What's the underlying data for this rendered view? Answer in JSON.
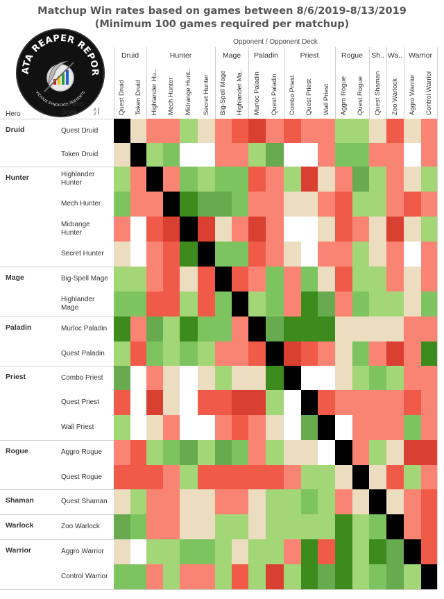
{
  "title_line1": "Matchup Win rates based on games between 8/6/2019-8/13/2019",
  "title_line2": "(Minimum 100 games required per matchup)",
  "logo": {
    "text_top": "DATA REAPER REPORT",
    "text_bottom": "VICIOUS SYNDICATE PRESENTS"
  },
  "opponent_header": "Opponent  /  Opponent Deck",
  "row_header": {
    "hero": "Hero",
    "deck": "Deck",
    "sort_icon": "sort-icon"
  },
  "colors": {
    "dark_red": "#c00000",
    "red": "#d94032",
    "red_light": "#f05a48",
    "salmon": "#fa8474",
    "beige": "#ecdcc0",
    "white": "#ffffff",
    "green_light": "#a3d677",
    "green": "#7dc35f",
    "green_mid": "#67aa4f",
    "dark_green": "#3d8b1c",
    "black": "#000000"
  },
  "chart_data": {
    "type": "heatmap",
    "title": "Matchup Win rates based on games between 8/6/2019-8/13/2019",
    "subtitle": "(Minimum 100 games required per matchup)",
    "xlabel": "Opponent  /  Opponent Deck",
    "ylabel": "Hero / Deck",
    "value_scale": "categorical win-rate color bins: dark_red (lowest) ... salmon, beige (~50%), green_light ... dark_green (highest); black = mirror match; white = no data",
    "column_groups": [
      {
        "name": "Druid",
        "count": 2
      },
      {
        "name": "Hunter",
        "count": 4
      },
      {
        "name": "Mage",
        "count": 2
      },
      {
        "name": "Paladin",
        "count": 2
      },
      {
        "name": "Priest",
        "count": 3
      },
      {
        "name": "Rogue",
        "count": 2
      },
      {
        "name": "Sh..",
        "count": 1
      },
      {
        "name": "Wa..",
        "count": 1
      },
      {
        "name": "Warrior",
        "count": 2
      }
    ],
    "columns": [
      "Quest Druid",
      "Token Druid",
      "Highlander Hu..",
      "Mech Hunter",
      "Midrange Hunt..",
      "Secret Hunter",
      "Big-Spell Mage",
      "Highlander Ma..",
      "Murloc Paladin",
      "Quest Paladin",
      "Combo Priest",
      "Quest Priest",
      "Wall Priest",
      "Aggro Rogue",
      "Quest Rogue",
      "Quest Shaman",
      "Zoo Warlock",
      "Aggro Warrior",
      "Control Warrior"
    ],
    "row_groups": [
      {
        "hero": "Druid",
        "decks": [
          "Quest Druid",
          "Token Druid"
        ]
      },
      {
        "hero": "Hunter",
        "decks": [
          "Highlander Hunter",
          "Mech Hunter",
          "Midrange Hunter",
          "Secret Hunter"
        ]
      },
      {
        "hero": "Mage",
        "decks": [
          "Big-Spell Mage",
          "Highlander Mage"
        ]
      },
      {
        "hero": "Paladin",
        "decks": [
          "Murloc Paladin",
          "Quest Paladin"
        ]
      },
      {
        "hero": "Priest",
        "decks": [
          "Combo Priest",
          "Quest Priest",
          "Wall Priest"
        ]
      },
      {
        "hero": "Rogue",
        "decks": [
          "Aggro Rogue",
          "Quest Rogue"
        ]
      },
      {
        "hero": "Shaman",
        "decks": [
          "Quest Shaman"
        ]
      },
      {
        "hero": "Warlock",
        "decks": [
          "Zoo Warlock"
        ]
      },
      {
        "hero": "Warrior",
        "decks": [
          "Aggro Warrior",
          "Control Warrior"
        ]
      }
    ],
    "cells": [
      [
        "K",
        "E",
        "S",
        "S",
        "L",
        "E",
        "S",
        "R",
        "D",
        "S",
        "R",
        "S",
        "S",
        "L",
        "L",
        "E",
        "R",
        "E",
        "S"
      ],
      [
        "E",
        "K",
        "L",
        "G",
        "W",
        "W",
        "S",
        "S",
        "L",
        "M",
        "W",
        "W",
        "S",
        "G",
        "G",
        "S",
        "S",
        "W",
        "S"
      ],
      [
        "L",
        "S",
        "K",
        "S",
        "G",
        "L",
        "G",
        "G",
        "R",
        "S",
        "L",
        "D",
        "E",
        "S",
        "M",
        "L",
        "S",
        "E",
        "L"
      ],
      [
        "G",
        "S",
        "S",
        "K",
        "N",
        "M",
        "M",
        "G",
        "S",
        "S",
        "E",
        "E",
        "S",
        "R",
        "L",
        "L",
        "S",
        "R",
        "S"
      ],
      [
        "S",
        "W",
        "R",
        "D",
        "K",
        "D",
        "E",
        "S",
        "D",
        "S",
        "W",
        "W",
        "E",
        "R",
        "S",
        "E",
        "D",
        "E",
        "L"
      ],
      [
        "E",
        "W",
        "S",
        "R",
        "N",
        "K",
        "G",
        "G",
        "R",
        "S",
        "E",
        "W",
        "S",
        "S",
        "L",
        "E",
        "S",
        "W",
        "S"
      ],
      [
        "L",
        "L",
        "S",
        "R",
        "E",
        "R",
        "K",
        "R",
        "S",
        "G",
        "S",
        "G",
        "E",
        "R",
        "L",
        "L",
        "S",
        "E",
        "S"
      ],
      [
        "G",
        "G",
        "R",
        "R",
        "L",
        "R",
        "G",
        "K",
        "L",
        "G",
        "S",
        "N",
        "M",
        "S",
        "G",
        "L",
        "L",
        "E",
        "G"
      ],
      [
        "N",
        "S",
        "M",
        "L",
        "N",
        "G",
        "G",
        "S",
        "K",
        "M",
        "N",
        "N",
        "N",
        "E",
        "E",
        "E",
        "E",
        "S",
        "S"
      ],
      [
        "L",
        "R",
        "G",
        "L",
        "G",
        "L",
        "S",
        "S",
        "R",
        "K",
        "D",
        "R",
        "S",
        "E",
        "G",
        "S",
        "D",
        "S",
        "N"
      ],
      [
        "M",
        "W",
        "S",
        "E",
        "W",
        "E",
        "L",
        "E",
        "E",
        "N",
        "K",
        "W",
        "W",
        "E",
        "L",
        "G",
        "L",
        "S",
        "S"
      ],
      [
        "R",
        "W",
        "D",
        "E",
        "W",
        "R",
        "R",
        "D",
        "D",
        "L",
        "W",
        "K",
        "R",
        "S",
        "S",
        "S",
        "S",
        "R",
        "S"
      ],
      [
        "L",
        "W",
        "E",
        "S",
        "W",
        "W",
        "S",
        "R",
        "S",
        "E",
        "W",
        "M",
        "K",
        "W",
        "S",
        "S",
        "S",
        "G",
        "S"
      ],
      [
        "S",
        "R",
        "L",
        "G",
        "M",
        "L",
        "M",
        "G",
        "S",
        "L",
        "E",
        "E",
        "W",
        "K",
        "S",
        "L",
        "E",
        "D",
        "D"
      ],
      [
        "R",
        "R",
        "R",
        "S",
        "L",
        "R",
        "R",
        "R",
        "R",
        "R",
        "S",
        "L",
        "L",
        "E",
        "K",
        "E",
        "R",
        "L",
        "S"
      ],
      [
        "E",
        "L",
        "S",
        "S",
        "E",
        "E",
        "S",
        "S",
        "E",
        "L",
        "L",
        "G",
        "L",
        "S",
        "E",
        "K",
        "E",
        "S",
        "R"
      ],
      [
        "M",
        "G",
        "S",
        "S",
        "E",
        "E",
        "L",
        "L",
        "E",
        "L",
        "L",
        "L",
        "L",
        "N",
        "L",
        "G",
        "K",
        "S",
        "R"
      ],
      [
        "E",
        "W",
        "L",
        "L",
        "G",
        "G",
        "L",
        "E",
        "L",
        "L",
        "S",
        "N",
        "R",
        "N",
        "L",
        "N",
        "M",
        "K",
        "R"
      ],
      [
        "G",
        "G",
        "S",
        "L",
        "S",
        "S",
        "L",
        "R",
        "L",
        "D",
        "L",
        "N",
        "M",
        "N",
        "L",
        "G",
        "M",
        "L",
        "K"
      ]
    ]
  }
}
